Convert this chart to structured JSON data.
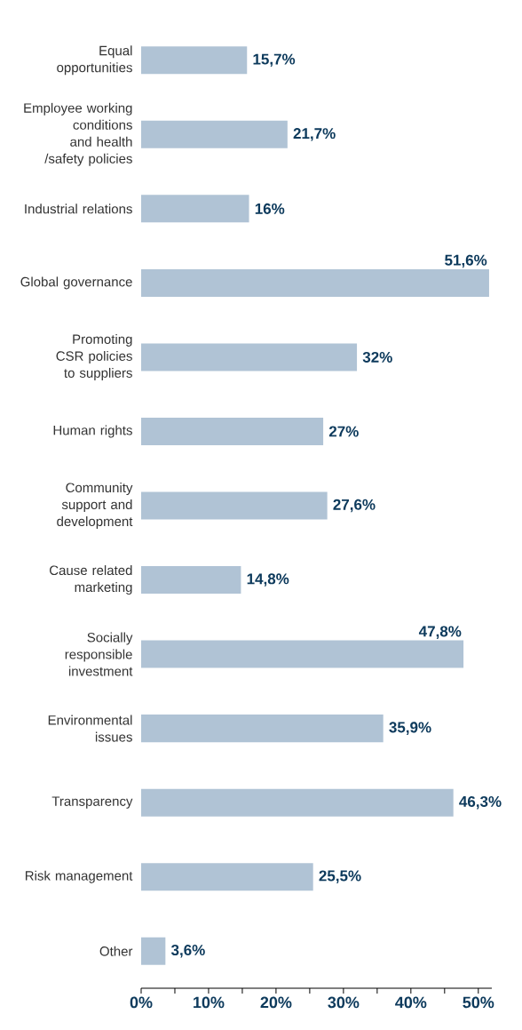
{
  "chart_data": {
    "type": "bar",
    "orientation": "horizontal",
    "categories": [
      "Equal opportunities",
      "Employee working conditions and health /safety policies",
      "Industrial relations",
      "Global governance",
      "Promoting CSR policies to suppliers",
      "Human rights",
      "Community support and development",
      "Cause related marketing",
      "Socially responsible investment",
      "Environmental issues",
      "Transparency",
      "Risk management",
      "Other"
    ],
    "values": [
      15.7,
      21.7,
      16,
      51.6,
      32,
      27,
      27.6,
      14.8,
      47.8,
      35.9,
      46.3,
      25.5,
      3.6
    ],
    "value_labels": [
      "15,7%",
      "21,7%",
      "16%",
      "51,6%",
      "32%",
      "27%",
      "27,6%",
      "14,8%",
      "47,8%",
      "35,9%",
      "46,3%",
      "25,5%",
      "3,6%"
    ],
    "color": "#b0c3d5",
    "xlim": [
      0,
      52
    ],
    "xticks": [
      {
        "value": 0,
        "label": "0%"
      },
      {
        "value": 10,
        "label": "10%"
      },
      {
        "value": 20,
        "label": "20%"
      },
      {
        "value": 30,
        "label": "30%"
      },
      {
        "value": 40,
        "label": "40%"
      },
      {
        "value": 50,
        "label": "50%"
      }
    ],
    "grid": false
  }
}
